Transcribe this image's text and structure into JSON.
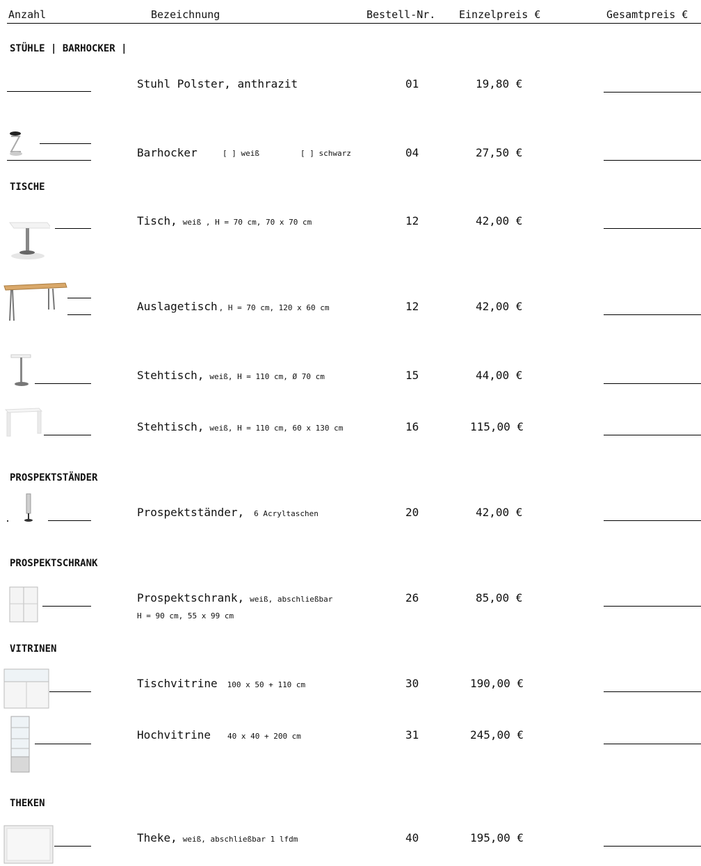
{
  "header": {
    "anzahl": "Anzahl",
    "bezeichnung": "Bezeichnung",
    "bestellnr": "Bestell-Nr.",
    "einzelpreis": "Einzelpreis €",
    "gesamtpreis": "Gesamtpreis €"
  },
  "sections": {
    "stuehle": "STÜHLE | BARHOCKER |",
    "tische": "TISCHE",
    "prospektstaender": "PROSPEKTSTÄNDER",
    "prospektschrank": "PROSPEKTSCHRANK",
    "vitrinen": "VITRINEN",
    "theken": "THEKEN"
  },
  "items": [
    {
      "name": "Stuhl Polster, anthrazit",
      "detail": "",
      "nr": "01",
      "price": "19,80 €"
    },
    {
      "name": "Barhocker",
      "opt1": "[ ] weiß",
      "opt2": "[ ] schwarz",
      "nr": "04",
      "price": "27,50 €"
    },
    {
      "name": "Tisch,",
      "detail": "weiß , H = 70 cm, 70 x 70 cm",
      "nr": "12",
      "price": "42,00 €"
    },
    {
      "name": "Auslagetisch",
      "detail": ", H = 70 cm, 120 x 60 cm",
      "nr": "12",
      "price": "42,00 €"
    },
    {
      "name": "Stehtisch,",
      "detail": "weiß, H = 110 cm, Ø 70 cm",
      "nr": "15",
      "price": "44,00 €"
    },
    {
      "name": "Stehtisch,",
      "detail": "weiß, H = 110 cm, 60 x 130 cm",
      "nr": "16",
      "price": "115,00 €"
    },
    {
      "name": "Prospektständer,",
      "detail": "6 Acryltaschen",
      "nr": "20",
      "price": "42,00 €"
    },
    {
      "name": "Prospektschrank,",
      "detail": "weiß, abschließbar",
      "line2": "H = 90 cm, 55 x 99 cm",
      "nr": "26",
      "price": "85,00 €"
    },
    {
      "name": "Tischvitrine",
      "detail": "100 x 50 + 110 cm",
      "nr": "30",
      "price": "190,00 €"
    },
    {
      "name": "Hochvitrine",
      "detail": "40 x 40 + 200 cm",
      "nr": "31",
      "price": "245,00 €"
    },
    {
      "name": "Theke,",
      "detail": "weiß, abschließbar 1 lfdm",
      "nr": "40",
      "price": "195,00 €"
    }
  ]
}
